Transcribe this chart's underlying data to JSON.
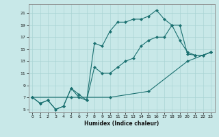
{
  "xlabel": "Humidex (Indice chaleur)",
  "background_color": "#c8e8e8",
  "line_color": "#1a7070",
  "grid_color": "#aad4d4",
  "xlim": [
    -0.5,
    23.5
  ],
  "ylim": [
    4.5,
    22.5
  ],
  "xticks": [
    0,
    1,
    2,
    3,
    4,
    5,
    6,
    7,
    8,
    9,
    10,
    11,
    12,
    13,
    14,
    15,
    16,
    17,
    18,
    19,
    20,
    21,
    22,
    23
  ],
  "yticks": [
    5,
    7,
    9,
    11,
    13,
    15,
    17,
    19,
    21
  ],
  "line1_x": [
    0,
    1,
    2,
    3,
    4,
    5,
    6,
    7,
    8,
    9,
    10,
    11,
    12,
    13,
    14,
    15,
    16,
    17,
    18,
    19,
    20,
    21,
    22,
    23
  ],
  "line1_y": [
    7,
    6,
    6.5,
    5,
    5.5,
    8.5,
    7.5,
    6.5,
    16,
    15.5,
    18,
    19.5,
    19.5,
    20,
    20,
    20.5,
    21.5,
    20,
    19,
    19,
    14.2,
    14,
    14,
    14.5
  ],
  "line2_x": [
    0,
    1,
    2,
    3,
    4,
    5,
    6,
    7,
    8,
    9,
    10,
    11,
    12,
    13,
    14,
    15,
    16,
    17,
    18,
    19,
    20,
    21,
    22,
    23
  ],
  "line2_y": [
    7,
    6,
    6.5,
    5,
    5.5,
    8.5,
    7,
    6.5,
    12,
    11,
    11,
    12,
    13,
    13.5,
    15.5,
    16.5,
    17,
    17,
    19,
    16.5,
    14.5,
    14,
    14,
    14.5
  ],
  "line3_x": [
    0,
    5,
    10,
    15,
    20,
    23
  ],
  "line3_y": [
    7,
    7,
    7,
    8,
    13,
    14.5
  ],
  "figsize": [
    3.2,
    2.0
  ],
  "dpi": 100
}
